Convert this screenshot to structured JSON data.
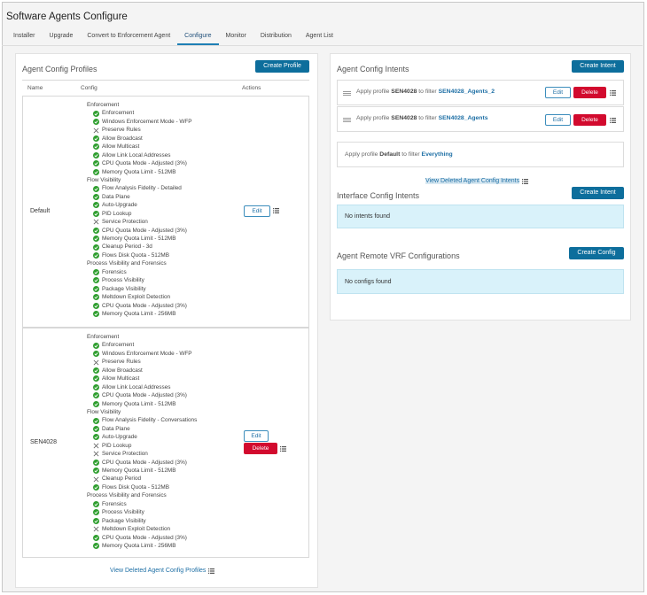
{
  "window": {
    "title": "Software Agents Configure"
  },
  "tabs": [
    {
      "label": "Installer",
      "active": false
    },
    {
      "label": "Upgrade",
      "active": false
    },
    {
      "label": "Convert to Enforcement Agent",
      "active": false
    },
    {
      "label": "Configure",
      "active": true
    },
    {
      "label": "Monitor",
      "active": false
    },
    {
      "label": "Distribution",
      "active": false
    },
    {
      "label": "Agent List",
      "active": false
    }
  ],
  "profiles": {
    "title": "Agent Config Profiles",
    "create_label": "Create Profile",
    "columns": {
      "name": "Name",
      "config": "Config",
      "actions": "Actions"
    },
    "edit_label": "Edit",
    "delete_label": "Delete",
    "view_deleted_label": "View Deleted Agent Config Profiles",
    "rows": [
      {
        "name": "Default",
        "lines": [
          {
            "t": "sec",
            "text": "Enforcement"
          },
          {
            "t": "on",
            "text": "Enforcement"
          },
          {
            "t": "on",
            "text": "Windows Enforcement Mode - WFP"
          },
          {
            "t": "off",
            "text": "Preserve Rules"
          },
          {
            "t": "on",
            "text": "Allow Broadcast"
          },
          {
            "t": "on",
            "text": "Allow Multicast"
          },
          {
            "t": "on",
            "text": "Allow Link Local Addresses"
          },
          {
            "t": "on",
            "text": "CPU Quota Mode - Adjusted (3%)"
          },
          {
            "t": "on",
            "text": "Memory Quota Limit - 512MB"
          },
          {
            "t": "sec",
            "text": "Flow Visibility"
          },
          {
            "t": "on",
            "text": "Flow Analysis Fidelity - Detailed"
          },
          {
            "t": "on",
            "text": "Data Plane"
          },
          {
            "t": "on",
            "text": "Auto-Upgrade"
          },
          {
            "t": "on",
            "text": "PID Lookup"
          },
          {
            "t": "off",
            "text": "Service Protection"
          },
          {
            "t": "on",
            "text": "CPU Quota Mode - Adjusted (3%)"
          },
          {
            "t": "on",
            "text": "Memory Quota Limit - 512MB"
          },
          {
            "t": "on",
            "text": "Cleanup Period - 3d"
          },
          {
            "t": "on",
            "text": "Flows Disk Quota - 512MB"
          },
          {
            "t": "sec",
            "text": "Process Visibility and Forensics"
          },
          {
            "t": "on",
            "text": "Forensics"
          },
          {
            "t": "on",
            "text": "Process Visibility"
          },
          {
            "t": "on",
            "text": "Package Visibility"
          },
          {
            "t": "on",
            "text": "Meltdown Exploit Detection"
          },
          {
            "t": "on",
            "text": "CPU Quota Mode - Adjusted (3%)"
          },
          {
            "t": "on",
            "text": "Memory Quota Limit - 256MB"
          }
        ]
      },
      {
        "name": "SEN4028",
        "lines": [
          {
            "t": "sec",
            "text": "Enforcement"
          },
          {
            "t": "on",
            "text": "Enforcement"
          },
          {
            "t": "on",
            "text": "Windows Enforcement Mode - WFP"
          },
          {
            "t": "off",
            "text": "Preserve Rules"
          },
          {
            "t": "on",
            "text": "Allow Broadcast"
          },
          {
            "t": "on",
            "text": "Allow Multicast"
          },
          {
            "t": "on",
            "text": "Allow Link Local Addresses"
          },
          {
            "t": "on",
            "text": "CPU Quota Mode - Adjusted (3%)"
          },
          {
            "t": "on",
            "text": "Memory Quota Limit - 512MB"
          },
          {
            "t": "sec",
            "text": "Flow Visibility"
          },
          {
            "t": "on",
            "text": "Flow Analysis Fidelity - Conversations"
          },
          {
            "t": "on",
            "text": "Data Plane"
          },
          {
            "t": "on",
            "text": "Auto-Upgrade"
          },
          {
            "t": "off",
            "text": "PID Lookup"
          },
          {
            "t": "off",
            "text": "Service Protection"
          },
          {
            "t": "on",
            "text": "CPU Quota Mode - Adjusted (3%)"
          },
          {
            "t": "on",
            "text": "Memory Quota Limit - 512MB"
          },
          {
            "t": "off",
            "text": "Cleanup Period"
          },
          {
            "t": "on",
            "text": "Flows Disk Quota - 512MB"
          },
          {
            "t": "sec",
            "text": "Process Visibility and Forensics"
          },
          {
            "t": "on",
            "text": "Forensics"
          },
          {
            "t": "on",
            "text": "Process Visibility"
          },
          {
            "t": "on",
            "text": "Package Visibility"
          },
          {
            "t": "off",
            "text": "Meltdown Exploit Detection"
          },
          {
            "t": "on",
            "text": "CPU Quota Mode - Adjusted (3%)"
          },
          {
            "t": "on",
            "text": "Memory Quota Limit - 256MB"
          }
        ]
      }
    ]
  },
  "intents": {
    "title": "Agent Config Intents",
    "create_label": "Create Intent",
    "edit_label": "Edit",
    "delete_label": "Delete",
    "items": [
      {
        "prefix": "Apply profile",
        "profile": "SEN4028",
        "mid": "to filter",
        "filter": "SEN4028_Agents_2"
      },
      {
        "prefix": "Apply profile",
        "profile": "SEN4028",
        "mid": "to filter",
        "filter": "SEN4028_Agents"
      }
    ],
    "default_item": {
      "prefix": "Apply profile",
      "profile": "Default",
      "mid": "to filter",
      "filter": "Everything"
    },
    "view_deleted_label": "View Deleted Agent Config Intents"
  },
  "interface_intents": {
    "title": "Interface Config Intents",
    "create_label": "Create Intent",
    "empty_text": "No intents found"
  },
  "vrf": {
    "title": "Agent Remote VRF Configurations",
    "create_label": "Create Config",
    "empty_text": "No configs found"
  },
  "colors": {
    "accent": "#0d6e9c",
    "danger": "#d20a2e",
    "check": "#2e9e2e",
    "info_bg": "#d9f2fa"
  }
}
